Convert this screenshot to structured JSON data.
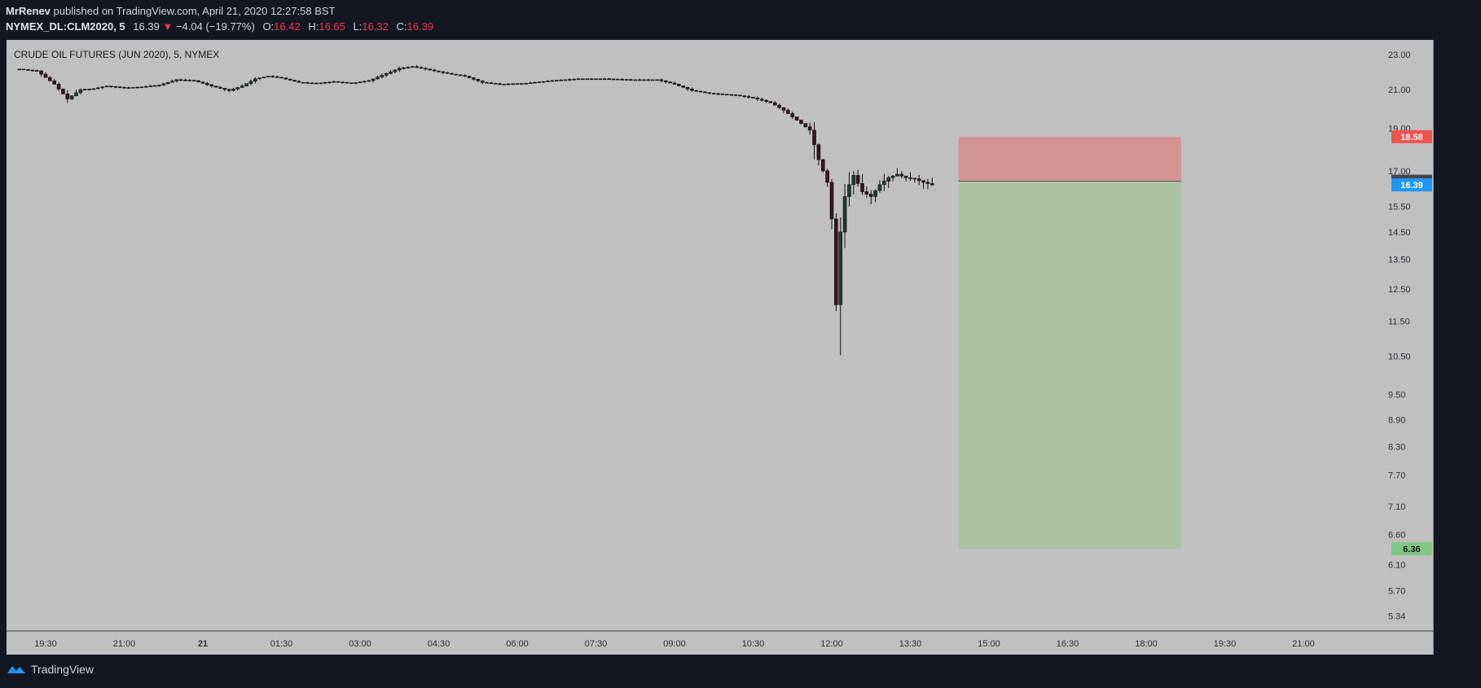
{
  "header": {
    "author": "MrRenev",
    "published_text": "published on TradingView.com, April 21, 2020 12:27:58 BST",
    "symbol": "NYMEX_DL:CLM2020, 5",
    "last_price": "16.39",
    "change_arrow": "▼",
    "change": "−4.04 (−19.77%)",
    "open_label": "O:",
    "open": "16.42",
    "high_label": "H:",
    "high": "16.65",
    "low_label": "L:",
    "low": "16.32",
    "close_label": "C:",
    "close": "16.39"
  },
  "chart_title": "CRUDE OIL FUTURES (JUN 2020), 5, NYMEX",
  "colors": {
    "background": "#131722",
    "plot_background": "#c0c0c0",
    "up_candle": "#1e3a34",
    "down_candle": "#3a1320",
    "stop_zone": "#d39594",
    "target_zone": "#acc3a2",
    "stop_badge": "#ef5350",
    "entry_badge": "#434651",
    "price_badge": "#2196f3",
    "target_badge": "#81c784"
  },
  "footer": {
    "brand": "TradingView",
    "logo_icon": "tradingview-logo-icon"
  },
  "chart_data": {
    "type": "candlestick",
    "title": "CRUDE OIL FUTURES (JUN 2020), 5, NYMEX",
    "timeframe_minutes": 5,
    "x_ticks": [
      "19:30",
      "21:00",
      "21",
      "01:30",
      "03:00",
      "04:30",
      "06:00",
      "07:30",
      "09:00",
      "10:30",
      "12:00",
      "13:30",
      "15:00",
      "16:30",
      "18:00",
      "19:30",
      "21:00"
    ],
    "y_ticks": [
      "23.00",
      "21.00",
      "19.00",
      "17.00",
      "15.50",
      "14.50",
      "13.50",
      "12.50",
      "11.50",
      "10.50",
      "9.50",
      "8.90",
      "8.30",
      "7.70",
      "7.10",
      "6.60",
      "6.10",
      "5.70",
      "5.34"
    ],
    "y_scale": "log",
    "y_range": [
      5.2,
      23.6
    ],
    "candles_start_time": "19:00",
    "last_candle_time": "12:25",
    "close_path": [
      [
        "19:00",
        22.15
      ],
      [
        "19:20",
        22.05
      ],
      [
        "19:40",
        21.3
      ],
      [
        "19:55",
        20.5
      ],
      [
        "20:10",
        21.0
      ],
      [
        "20:25",
        21.05
      ],
      [
        "20:40",
        21.2
      ],
      [
        "21:00",
        21.1
      ],
      [
        "21:20",
        21.15
      ],
      [
        "21:40",
        21.25
      ],
      [
        "22:00",
        21.55
      ],
      [
        "22:20",
        21.5
      ],
      [
        "22:40",
        21.2
      ],
      [
        "23:00",
        20.95
      ],
      [
        "23:15",
        21.2
      ],
      [
        "23:30",
        21.6
      ],
      [
        "23:45",
        21.75
      ],
      [
        "00:00",
        21.65
      ],
      [
        "00:20",
        21.4
      ],
      [
        "00:40",
        21.35
      ],
      [
        "01:00",
        21.45
      ],
      [
        "01:20",
        21.35
      ],
      [
        "01:40",
        21.5
      ],
      [
        "02:00",
        21.9
      ],
      [
        "02:15",
        22.2
      ],
      [
        "02:30",
        22.3
      ],
      [
        "02:50",
        22.1
      ],
      [
        "03:10",
        21.9
      ],
      [
        "03:30",
        21.75
      ],
      [
        "03:50",
        21.4
      ],
      [
        "04:10",
        21.3
      ],
      [
        "04:40",
        21.35
      ],
      [
        "05:10",
        21.5
      ],
      [
        "05:40",
        21.6
      ],
      [
        "06:10",
        21.6
      ],
      [
        "06:40",
        21.55
      ],
      [
        "07:10",
        21.55
      ],
      [
        "07:30",
        21.3
      ],
      [
        "07:50",
        20.95
      ],
      [
        "08:10",
        20.8
      ],
      [
        "08:40",
        20.7
      ],
      [
        "09:00",
        20.55
      ],
      [
        "09:20",
        20.3
      ],
      [
        "09:35",
        19.9
      ],
      [
        "09:50",
        19.4
      ],
      [
        "10:05",
        18.9
      ],
      [
        "10:15",
        17.5
      ],
      [
        "10:25",
        16.5
      ],
      [
        "10:30",
        15.0
      ],
      [
        "10:35",
        12.0
      ],
      [
        "10:40",
        14.5
      ],
      [
        "10:45",
        15.9
      ],
      [
        "10:50",
        16.4
      ],
      [
        "10:55",
        16.8
      ],
      [
        "11:05",
        16.1
      ],
      [
        "11:15",
        15.9
      ],
      [
        "11:25",
        16.4
      ],
      [
        "11:35",
        16.7
      ],
      [
        "11:45",
        16.85
      ],
      [
        "11:55",
        16.7
      ],
      [
        "12:05",
        16.65
      ],
      [
        "12:15",
        16.5
      ],
      [
        "12:25",
        16.39
      ]
    ],
    "extreme_low": [
      "10:35",
      11.8
    ],
    "extreme_high_session": [
      "02:25",
      22.5
    ],
    "position": {
      "type": "short",
      "start_time": "12:55",
      "end_time": "17:10",
      "stop": 18.58,
      "entry": 16.55,
      "target": 6.36
    },
    "price_labels": {
      "stop": "18.58",
      "entry": "16.55",
      "last": "16.39",
      "target": "6.36"
    }
  }
}
